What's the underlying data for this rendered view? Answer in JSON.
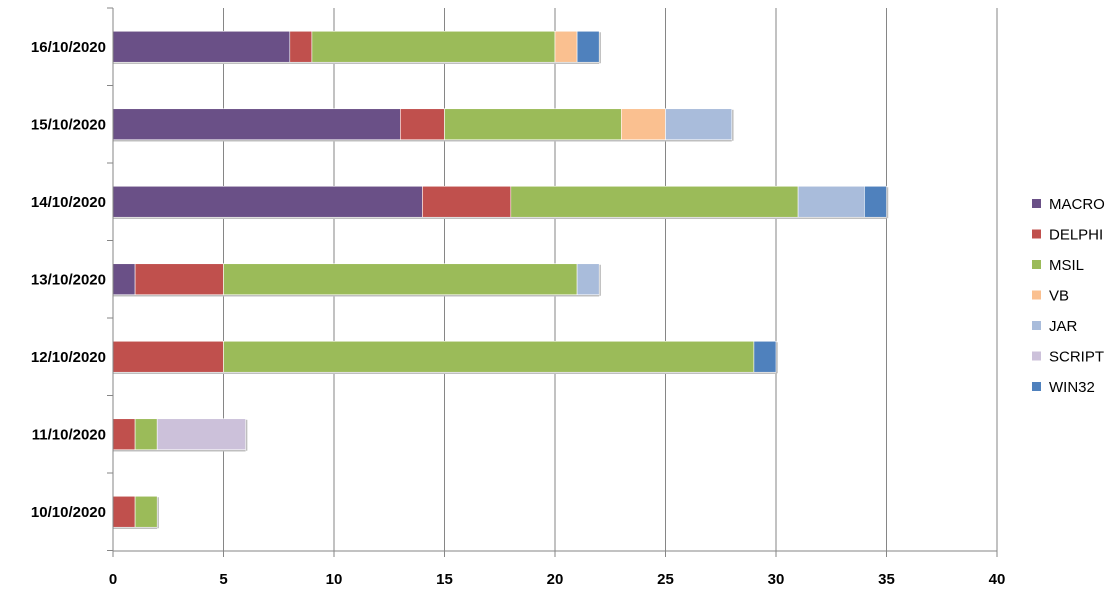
{
  "chart_data": {
    "type": "bar",
    "orientation": "horizontal",
    "stacked": true,
    "categories": [
      "16/10/2020",
      "15/10/2020",
      "14/10/2020",
      "13/10/2020",
      "12/10/2020",
      "11/10/2020",
      "10/10/2020"
    ],
    "series": [
      {
        "name": "MACRO",
        "color": "#6a5087",
        "values": [
          8,
          13,
          14,
          1,
          0,
          0,
          0
        ]
      },
      {
        "name": "DELPHI",
        "color": "#c0504d",
        "values": [
          1,
          2,
          4,
          4,
          5,
          1,
          1
        ]
      },
      {
        "name": "MSIL",
        "color": "#9bbb59",
        "values": [
          11,
          8,
          13,
          16,
          24,
          1,
          1
        ]
      },
      {
        "name": "VB",
        "color": "#fac090",
        "values": [
          1,
          2,
          0,
          0,
          0,
          0,
          0
        ]
      },
      {
        "name": "JAR",
        "color": "#a9bcdb",
        "values": [
          0,
          3,
          3,
          1,
          0,
          0,
          0
        ]
      },
      {
        "name": "SCRIPT",
        "color": "#ccc1da",
        "values": [
          0,
          0,
          0,
          0,
          0,
          4,
          0
        ]
      },
      {
        "name": "WIN32",
        "color": "#4f81bd",
        "values": [
          1,
          0,
          1,
          0,
          1,
          0,
          0
        ]
      }
    ],
    "xlim": [
      0,
      40
    ],
    "xticks": [
      0,
      5,
      10,
      15,
      20,
      25,
      30,
      35,
      40
    ],
    "grid": "vertical",
    "legend": "right"
  }
}
